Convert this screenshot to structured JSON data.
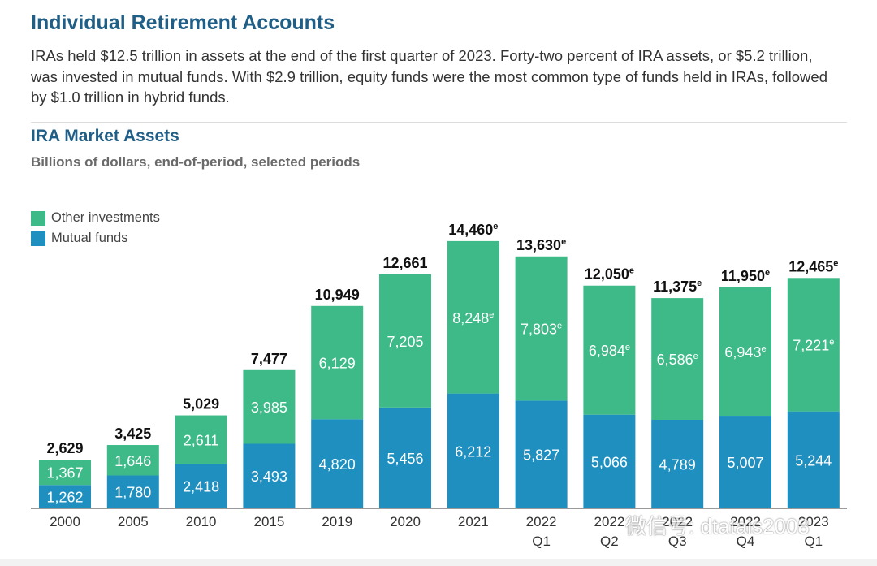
{
  "header": {
    "title": "Individual Retirement Accounts",
    "intro": "IRAs held $12.5 trillion in assets at the end of the first quarter of 2023. Forty-two percent of IRA assets, or $5.2 trillion, was invested in mutual funds. With $2.9 trillion, equity funds were the most common type of funds held in IRAs, followed by $1.0 trillion in hybrid funds."
  },
  "chart_data": {
    "type": "bar",
    "stacked": true,
    "title": "IRA Market Assets",
    "subtitle": "Billions of dollars, end-of-period, selected periods",
    "xlabel": "",
    "ylabel": "",
    "ylim": [
      0,
      15000
    ],
    "grid": false,
    "legend_position": "top-left",
    "estimate_marker": "e",
    "categories": [
      {
        "line1": "2000",
        "line2": ""
      },
      {
        "line1": "2005",
        "line2": ""
      },
      {
        "line1": "2010",
        "line2": ""
      },
      {
        "line1": "2015",
        "line2": ""
      },
      {
        "line1": "2019",
        "line2": ""
      },
      {
        "line1": "2020",
        "line2": ""
      },
      {
        "line1": "2021",
        "line2": ""
      },
      {
        "line1": "2022",
        "line2": "Q1"
      },
      {
        "line1": "2022",
        "line2": "Q2"
      },
      {
        "line1": "2022",
        "line2": "Q3"
      },
      {
        "line1": "2022",
        "line2": "Q4"
      },
      {
        "line1": "2023",
        "line2": "Q1"
      }
    ],
    "series": [
      {
        "name": "Mutual funds",
        "color": "#1f8fc0",
        "values": [
          1262,
          1780,
          2418,
          3493,
          4820,
          5456,
          6212,
          5827,
          5066,
          4789,
          5007,
          5244
        ],
        "labels": [
          "1,262",
          "1,780",
          "2,418",
          "3,493",
          "4,820",
          "5,456",
          "6,212",
          "5,827",
          "5,066",
          "4,789",
          "5,007",
          "5,244"
        ],
        "estimated": [
          false,
          false,
          false,
          false,
          false,
          false,
          false,
          false,
          false,
          false,
          false,
          false
        ]
      },
      {
        "name": "Other investments",
        "color": "#3dba87",
        "values": [
          1367,
          1646,
          2611,
          3985,
          6129,
          7205,
          8248,
          7803,
          6984,
          6586,
          6943,
          7221
        ],
        "labels": [
          "1,367",
          "1,646",
          "2,611",
          "3,985",
          "6,129",
          "7,205",
          "8,248",
          "7,803",
          "6,984",
          "6,586",
          "6,943",
          "7,221"
        ],
        "estimated": [
          false,
          false,
          false,
          false,
          false,
          false,
          true,
          true,
          true,
          true,
          true,
          true
        ]
      }
    ],
    "totals": [
      2629,
      3425,
      5029,
      7477,
      10949,
      12661,
      14460,
      13630,
      12050,
      11375,
      11950,
      12465
    ],
    "total_labels": [
      "2,629",
      "3,425",
      "5,029",
      "7,477",
      "10,949",
      "12,661",
      "14,460",
      "13,630",
      "12,050",
      "11,375",
      "11,950",
      "12,465"
    ],
    "totals_estimated": [
      false,
      false,
      false,
      false,
      false,
      false,
      true,
      true,
      true,
      true,
      true,
      true
    ]
  },
  "watermark": {
    "text": "微信号: dtatais2008"
  }
}
